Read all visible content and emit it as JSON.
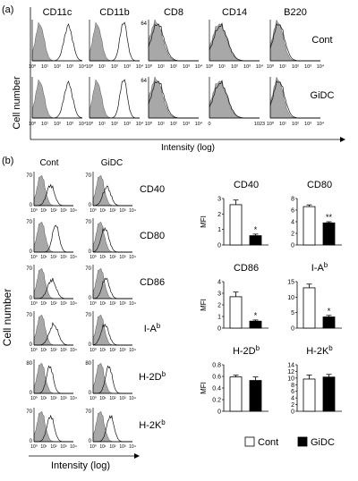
{
  "panel_a": {
    "label": "(a)",
    "markers": [
      "CD11c",
      "CD11b",
      "CD8",
      "CD14",
      "B220"
    ],
    "conditions": [
      "Cont",
      "GiDC"
    ],
    "y_axis_label": "Cell number",
    "x_axis_label": "Intensity (log)",
    "log_ticks": [
      "10⁰",
      "10¹",
      "10²",
      "10³",
      "10⁴"
    ],
    "linear_ticks": [
      "0",
      "1023"
    ],
    "ymax_label": "64"
  },
  "panel_b": {
    "label": "(b)",
    "columns": [
      "Cont",
      "GiDC"
    ],
    "markers": [
      "CD40",
      "CD80",
      "CD86",
      "I-Ab",
      "H-2Db",
      "H-2Kb"
    ],
    "histogram_ymax": [
      "70",
      "70",
      "70",
      "70",
      "80",
      "70"
    ],
    "y_axis_label": "Cell number",
    "x_axis_label": "Intensity (log)",
    "log_ticks": [
      "10⁰",
      "10¹",
      "10²",
      "10³",
      "10⁴"
    ]
  },
  "chart_data": [
    {
      "type": "bar",
      "title": "CD40",
      "ylabel": "MFI",
      "categories": [
        "Cont",
        "GiDC"
      ],
      "values": [
        2.6,
        0.6
      ],
      "errors": [
        0.3,
        0.1
      ],
      "ylim": [
        0,
        3
      ],
      "yticks": [
        "0",
        "1",
        "2",
        "3"
      ],
      "significance": "*"
    },
    {
      "type": "bar",
      "title": "CD80",
      "ylabel": "",
      "categories": [
        "Cont",
        "GiDC"
      ],
      "values": [
        6.6,
        3.8
      ],
      "errors": [
        0.3,
        0.2
      ],
      "ylim": [
        0,
        8
      ],
      "yticks": [
        "0",
        "2",
        "4",
        "6",
        "8"
      ],
      "significance": "**"
    },
    {
      "type": "bar",
      "title": "CD86",
      "ylabel": "MFI",
      "categories": [
        "Cont",
        "GiDC"
      ],
      "values": [
        2.7,
        0.6
      ],
      "errors": [
        0.4,
        0.1
      ],
      "ylim": [
        0,
        4
      ],
      "yticks": [
        "0",
        "1",
        "2",
        "3",
        "4"
      ],
      "significance": "*"
    },
    {
      "type": "bar",
      "title": "I-Ab",
      "ylabel": "",
      "categories": [
        "Cont",
        "GiDC"
      ],
      "values": [
        13,
        3.6
      ],
      "errors": [
        1.2,
        0.5
      ],
      "ylim": [
        0,
        15
      ],
      "yticks": [
        "0",
        "5",
        "10",
        "15"
      ],
      "significance": "*"
    },
    {
      "type": "bar",
      "title": "H-2Db",
      "ylabel": "MFI",
      "categories": [
        "Cont",
        "GiDC"
      ],
      "values": [
        0.59,
        0.53
      ],
      "errors": [
        0.03,
        0.06
      ],
      "ylim": [
        0,
        0.8
      ],
      "yticks": [
        "0",
        "0.2",
        "0.4",
        "0.6",
        "0.8"
      ],
      "significance": ""
    },
    {
      "type": "bar",
      "title": "H-2Kb",
      "ylabel": "",
      "categories": [
        "Cont",
        "GiDC"
      ],
      "values": [
        9.7,
        10.3
      ],
      "errors": [
        1.2,
        0.8
      ],
      "ylim": [
        0,
        14
      ],
      "yticks": [
        "0",
        "2",
        "4",
        "6",
        "8",
        "10",
        "12",
        "14"
      ],
      "significance": ""
    }
  ],
  "legend": {
    "cont": "Cont",
    "gidc": "GiDC"
  }
}
